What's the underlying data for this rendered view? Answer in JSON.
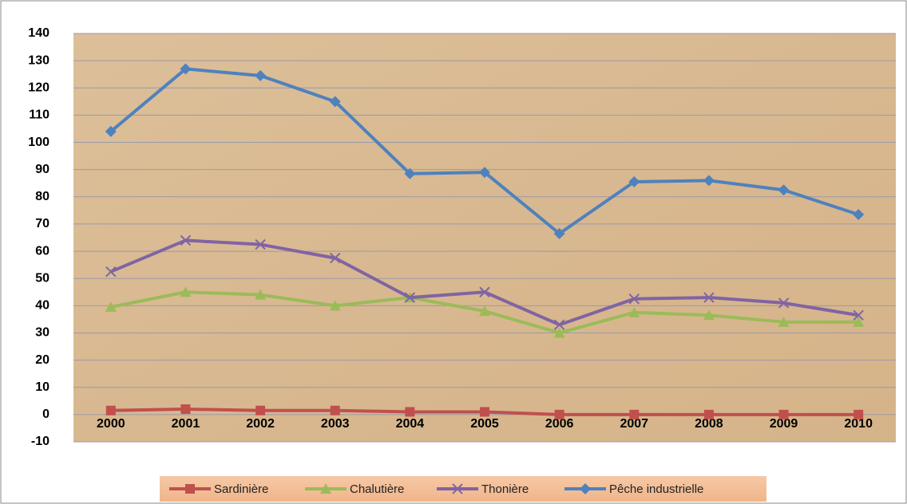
{
  "chart_data": {
    "type": "line",
    "categories": [
      "2000",
      "2001",
      "2002",
      "2003",
      "2004",
      "2005",
      "2006",
      "2007",
      "2008",
      "2009",
      "2010"
    ],
    "series": [
      {
        "name": "Sardinière",
        "color": "#c0504d",
        "marker": "square",
        "values": [
          1.5,
          2,
          1.5,
          1.5,
          1,
          1,
          0,
          0,
          0,
          0,
          0
        ]
      },
      {
        "name": "Chalutière",
        "color": "#9bbb59",
        "marker": "triangle",
        "values": [
          39.5,
          45,
          44,
          40,
          43,
          38,
          30,
          37.5,
          36.5,
          34,
          34
        ]
      },
      {
        "name": "Thonière",
        "color": "#8064a2",
        "marker": "cross",
        "values": [
          52.5,
          64,
          62.5,
          57.5,
          43,
          45,
          33,
          42.5,
          43,
          41,
          36.5
        ]
      },
      {
        "name": "Pêche industrielle",
        "color": "#4f81bd",
        "marker": "diamond",
        "values": [
          104,
          127,
          124.5,
          115,
          88.5,
          89,
          66.5,
          85.5,
          86,
          82.5,
          73.5
        ]
      }
    ],
    "ylim": [
      -10,
      140
    ],
    "yticks": [
      -10,
      0,
      10,
      20,
      30,
      40,
      50,
      60,
      70,
      80,
      90,
      100,
      110,
      120,
      130,
      140
    ],
    "grid": true,
    "legend": "bottom"
  }
}
